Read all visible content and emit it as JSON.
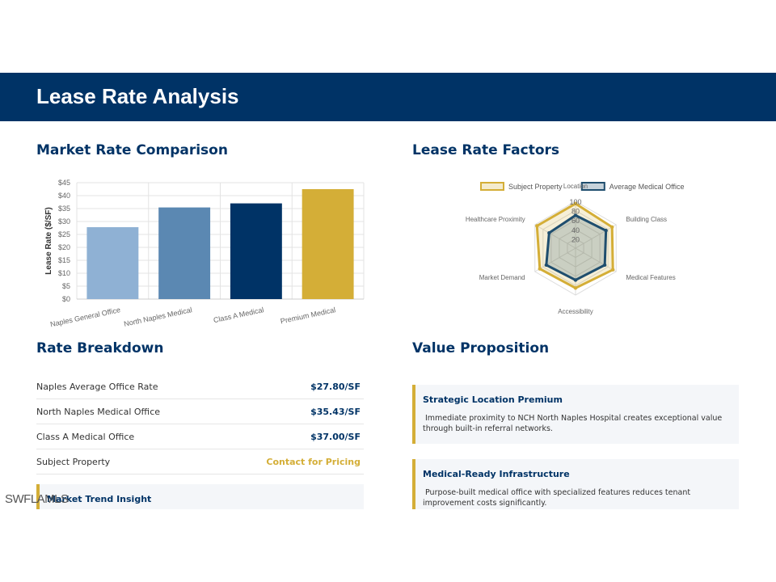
{
  "page": {
    "title": "Lease Rate Analysis",
    "watermark": "SWFLAMLS"
  },
  "sections": {
    "market_rate": "Market Rate Comparison",
    "lease_factors": "Lease Rate Factors",
    "breakdown": "Rate Breakdown",
    "value": "Value Proposition"
  },
  "chart_data": [
    {
      "type": "bar",
      "title": "",
      "ylabel": "Lease Rate ($/SF)",
      "categories": [
        "Naples General Office",
        "North Naples Medical",
        "Class A Medical",
        "Premium Medical"
      ],
      "values": [
        27.8,
        35.43,
        37.0,
        42.5
      ],
      "colors": [
        "#8fb1d4",
        "#5b88b2",
        "#003366",
        "#d4ae37"
      ],
      "ylim": [
        0,
        45
      ],
      "yticks": [
        "$0",
        "$5",
        "$10",
        "$15",
        "$20",
        "$25",
        "$30",
        "$35",
        "$40",
        "$45"
      ]
    },
    {
      "type": "radar",
      "axes": [
        "Location",
        "Building Class",
        "Medical Features",
        "Accessibility",
        "Market Demand",
        "Healthcare Proximity"
      ],
      "rlim": [
        0,
        100
      ],
      "rticks": [
        "20",
        "40",
        "60",
        "80",
        "100"
      ],
      "series": [
        {
          "name": "Subject Property",
          "values": [
            95,
            90,
            92,
            85,
            88,
            95
          ],
          "color": "#d4ae37"
        },
        {
          "name": "Average Medical Office",
          "values": [
            70,
            75,
            72,
            68,
            72,
            65
          ],
          "color": "#1f4e6e"
        }
      ]
    }
  ],
  "breakdown_rows": [
    {
      "label": "Naples Average Office Rate",
      "value": "$27.80/SF"
    },
    {
      "label": "North Naples Medical Office",
      "value": "$35.43/SF"
    },
    {
      "label": "Class A Medical Office",
      "value": "$37.00/SF"
    },
    {
      "label": "Subject Property",
      "value": "Contact for Pricing"
    }
  ],
  "trend_insight": {
    "title": "Market Trend Insight"
  },
  "value_props": [
    {
      "title": "Strategic Location Premium",
      "text": "Immediate proximity to NCH North Naples Hospital creates exceptional value through built-in referral networks."
    },
    {
      "title": "Medical-Ready Infrastructure",
      "text": "Purpose-built medical office with specialized features reduces tenant improvement costs significantly."
    }
  ]
}
